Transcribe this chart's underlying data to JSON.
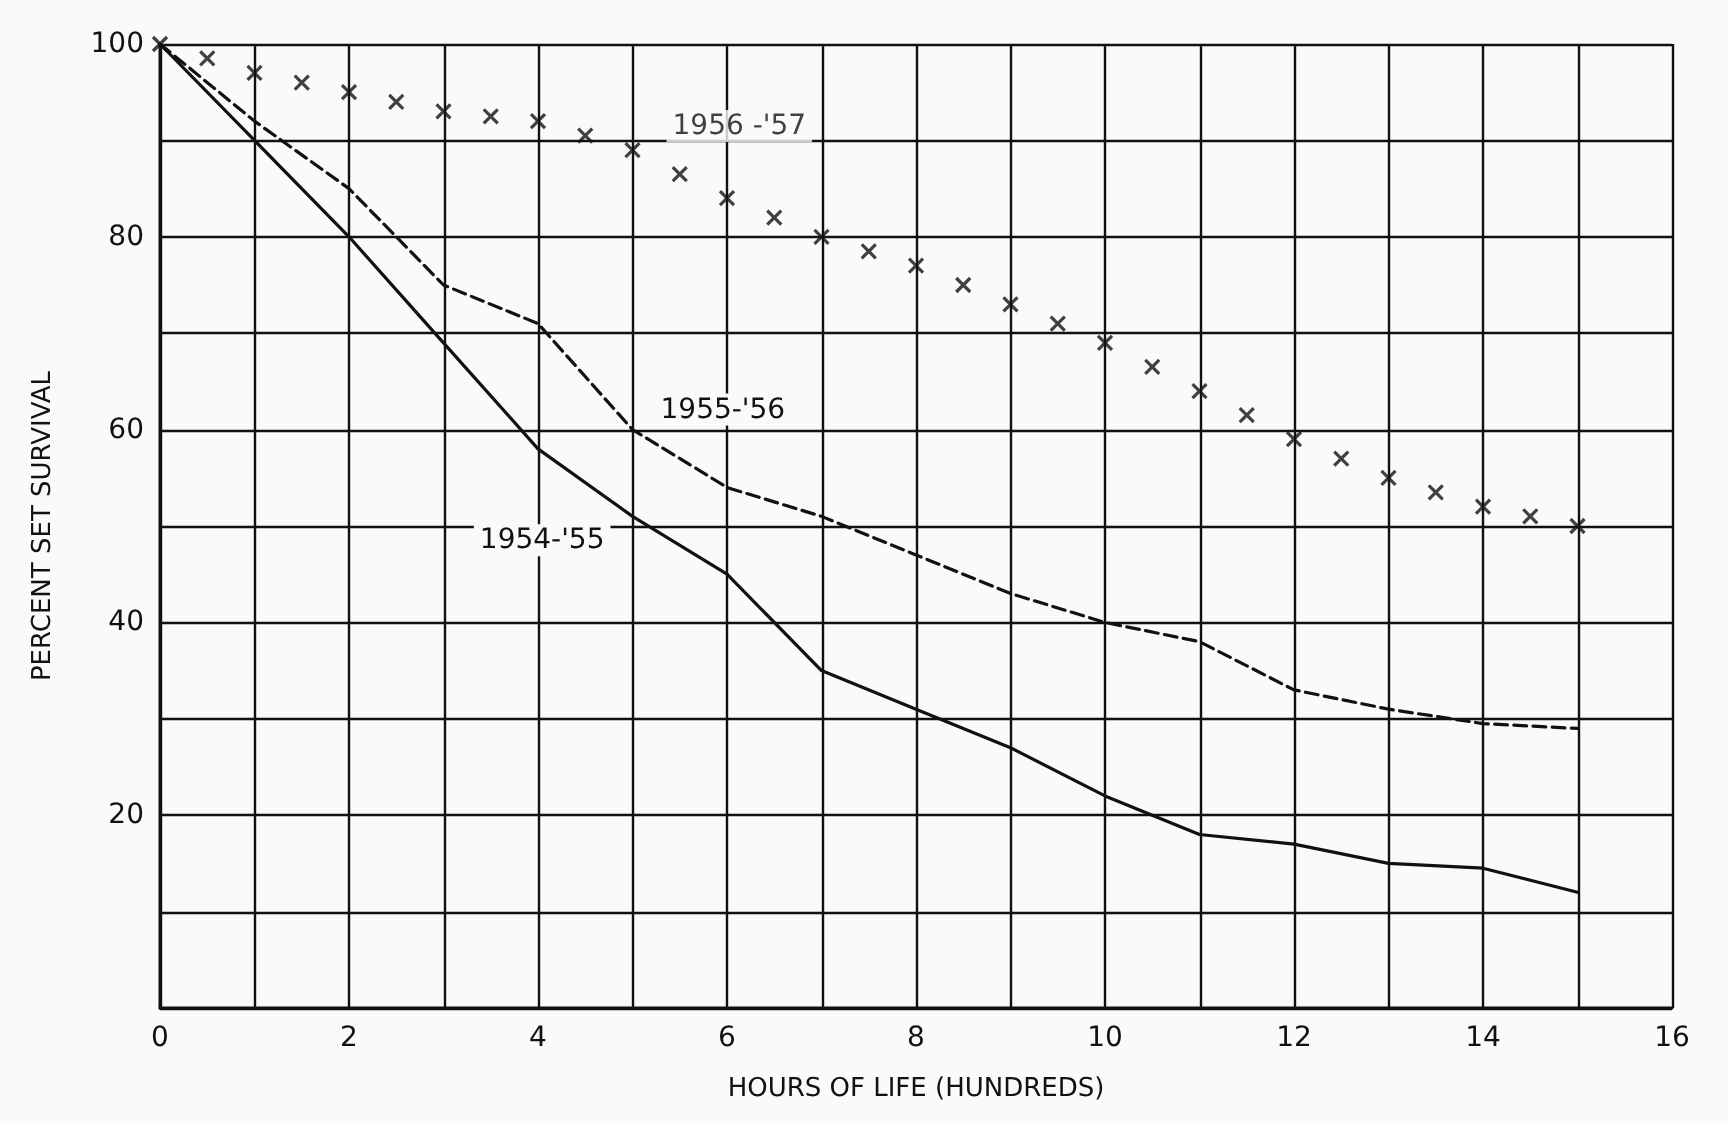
{
  "chart_data": {
    "type": "line",
    "xlabel": "HOURS OF LIFE (HUNDREDS)",
    "ylabel": "PERCENT SET SURVIVAL",
    "xlim": [
      0,
      16
    ],
    "ylim": [
      0,
      100
    ],
    "xticks": [
      0,
      {
        "value": 1,
        "label": null
      },
      2,
      {
        "value": 3,
        "label": null
      },
      4,
      {
        "value": 5,
        "label": null
      },
      6,
      {
        "value": 7,
        "label": null
      },
      8,
      {
        "value": 9,
        "label": null
      },
      10,
      {
        "value": 11,
        "label": null
      },
      12,
      {
        "value": 13,
        "label": null
      },
      14,
      {
        "value": 15,
        "label": null
      },
      16
    ],
    "yticks": [
      {
        "value": 0,
        "label": null
      },
      {
        "value": 10,
        "label": null
      },
      20,
      {
        "value": 30,
        "label": null
      },
      40,
      {
        "value": 50,
        "label": null
      },
      60,
      {
        "value": 70,
        "label": null
      },
      80,
      {
        "value": 90,
        "label": null
      },
      100
    ],
    "grid": true,
    "legend": false,
    "series": [
      {
        "name": "1954-'55",
        "color": "#111111",
        "line_style": "solid",
        "marker": "none",
        "x": [
          0,
          1,
          2,
          3,
          4,
          5,
          6,
          7,
          8,
          9,
          10,
          11,
          12,
          13,
          14,
          15
        ],
        "values": [
          100,
          90,
          80,
          69,
          58,
          51,
          45,
          35,
          31,
          27,
          22,
          18,
          17,
          15,
          14.5,
          12
        ]
      },
      {
        "name": "1955-'56",
        "color": "#111111",
        "line_style": "dashed",
        "marker": "none",
        "x": [
          0,
          1,
          2,
          3,
          4,
          5,
          6,
          7,
          8,
          9,
          10,
          11,
          12,
          13,
          14,
          15
        ],
        "values": [
          100,
          92,
          85,
          75,
          71,
          60,
          54,
          51,
          47,
          43,
          40,
          38,
          33,
          31,
          29.5,
          29
        ]
      },
      {
        "name": "1956 -'57",
        "type": "scatter",
        "color": "#111111",
        "marker": "cross",
        "x": [
          0,
          0.5,
          1,
          1.5,
          2,
          2.5,
          3,
          3.5,
          4,
          4.5,
          5,
          5.5,
          6,
          6.5,
          7,
          7.5,
          8,
          8.5,
          9,
          9.5,
          10,
          10.5,
          11,
          11.5,
          12,
          12.5,
          13,
          13.5,
          14,
          14.5,
          15
        ],
        "values": [
          100,
          98.5,
          97,
          96,
          95,
          94,
          93,
          92.5,
          92,
          90.5,
          89,
          86.5,
          84,
          82,
          80,
          78.5,
          77,
          75,
          73,
          71,
          69,
          66.5,
          64,
          61.5,
          59,
          57,
          55,
          53.5,
          52,
          51,
          50
        ]
      }
    ]
  }
}
